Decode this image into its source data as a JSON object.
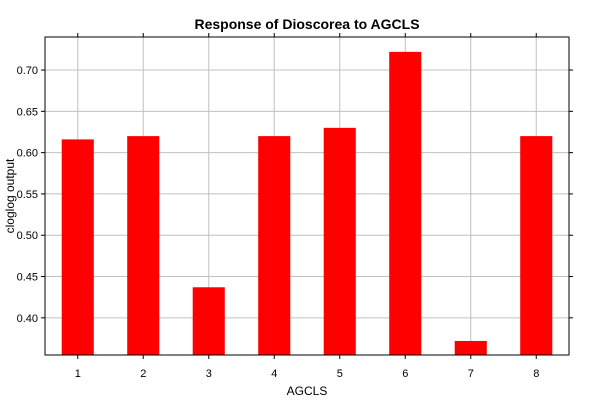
{
  "chart_data": {
    "type": "bar",
    "title": "Response of Dioscorea to AGCLS",
    "xlabel": "AGCLS",
    "ylabel": "cloglog output",
    "categories": [
      "1",
      "2",
      "3",
      "4",
      "5",
      "6",
      "7",
      "8"
    ],
    "values": [
      0.616,
      0.62,
      0.437,
      0.62,
      0.63,
      0.722,
      0.372,
      0.62
    ],
    "ylim": [
      0.355,
      0.74
    ],
    "yticks": [
      "0.40",
      "0.45",
      "0.50",
      "0.55",
      "0.60",
      "0.65",
      "0.70"
    ],
    "grid": true,
    "legend": "none",
    "bar_color": "#ff0000",
    "grid_color": "#c0c0c0"
  }
}
